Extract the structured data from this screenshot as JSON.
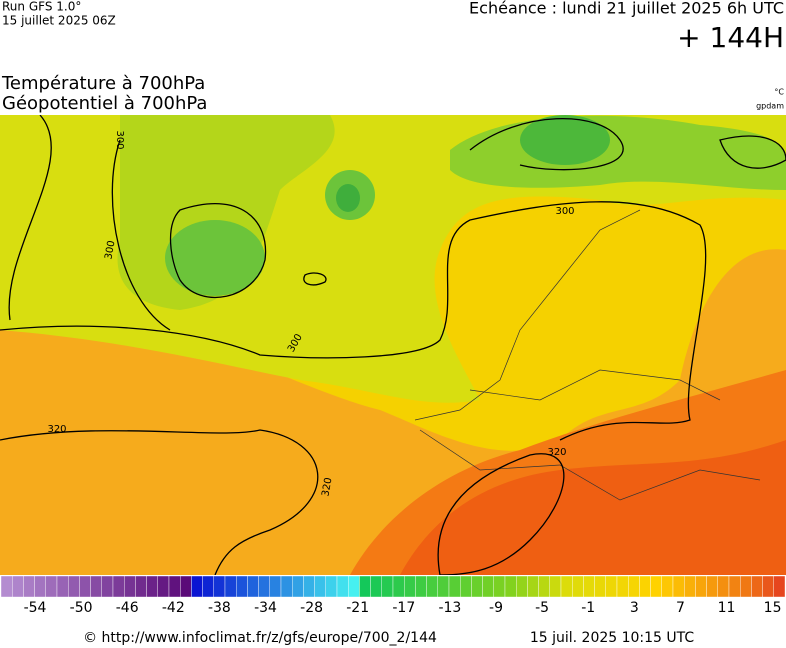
{
  "header": {
    "run": "Run GFS 1.0°",
    "run_date": "15 juillet 2025 06Z",
    "valid": "Echéance : lundi 21 juillet 2025 6h UTC",
    "lead": "+ 144H"
  },
  "titles": {
    "temperature": "Température à 700hPa",
    "geopotential": "Géopotentiel à 700hPa",
    "temperature_unit": "°C",
    "geopotential_unit": "gpdam"
  },
  "contour_labels": [
    "300",
    "300",
    "300",
    "300",
    "320",
    "320",
    "320"
  ],
  "colorbar_labels": [
    "-54",
    "-50",
    "-46",
    "-42",
    "-38",
    "-34",
    "-28",
    "-21",
    "-17",
    "-13",
    "-9",
    "-5",
    "-1",
    "3",
    "7",
    "11",
    "15"
  ],
  "footer": {
    "source": "© http://www.infoclimat.fr/z/gfs/europe/700_2/144",
    "generated": "15 juil. 2025 10:15 UTC"
  }
}
